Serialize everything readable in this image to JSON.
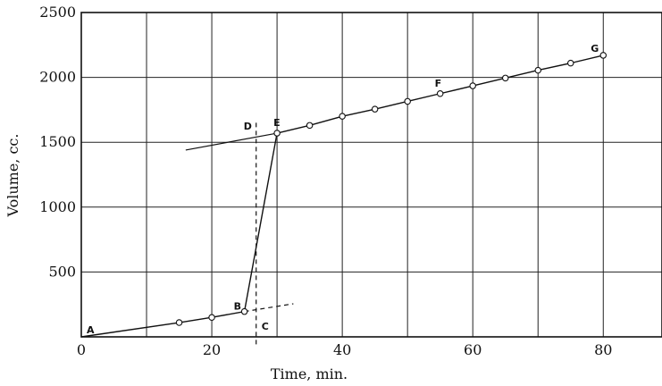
{
  "chart_data": {
    "type": "line",
    "xlabel": "Time, min.",
    "ylabel": "Volume, cc.",
    "xlim": [
      0,
      89
    ],
    "ylim": [
      0,
      2500
    ],
    "x_ticks": [
      0,
      20,
      40,
      60,
      80
    ],
    "y_ticks": [
      500,
      1000,
      1500,
      2000,
      2500
    ],
    "x_grid": [
      10,
      20,
      30,
      40,
      50,
      60,
      70,
      80
    ],
    "y_grid": [
      500,
      1000,
      1500,
      2000,
      2500
    ],
    "grid": true,
    "series": [
      {
        "x": [
          0,
          15,
          20,
          25,
          30,
          35,
          40,
          45,
          50,
          55,
          60,
          65,
          70,
          75,
          80
        ],
        "y": [
          0,
          110,
          150,
          195,
          1570,
          1630,
          1700,
          1755,
          1815,
          1875,
          1935,
          1995,
          2055,
          2110,
          2170
        ]
      }
    ],
    "extrapolations": [
      {
        "x": [
          25,
          32.5
        ],
        "y": [
          195,
          255
        ],
        "style": "dashed"
      },
      {
        "x": [
          16,
          30
        ],
        "y": [
          1440,
          1570
        ],
        "style": "solid"
      }
    ],
    "vertical_line": {
      "x": 26.8,
      "y_range": [
        -80,
        1650
      ]
    },
    "point_labels": [
      {
        "text": "A",
        "x": 0,
        "y": 0
      },
      {
        "text": "B",
        "x": 25,
        "y": 195
      },
      {
        "text": "C",
        "x": 26.8,
        "y": 150
      },
      {
        "text": "D",
        "x": 26.8,
        "y": 1570
      },
      {
        "text": "E",
        "x": 30,
        "y": 1570
      },
      {
        "text": "F",
        "x": 55,
        "y": 1875
      },
      {
        "text": "G",
        "x": 80,
        "y": 2170
      }
    ]
  }
}
